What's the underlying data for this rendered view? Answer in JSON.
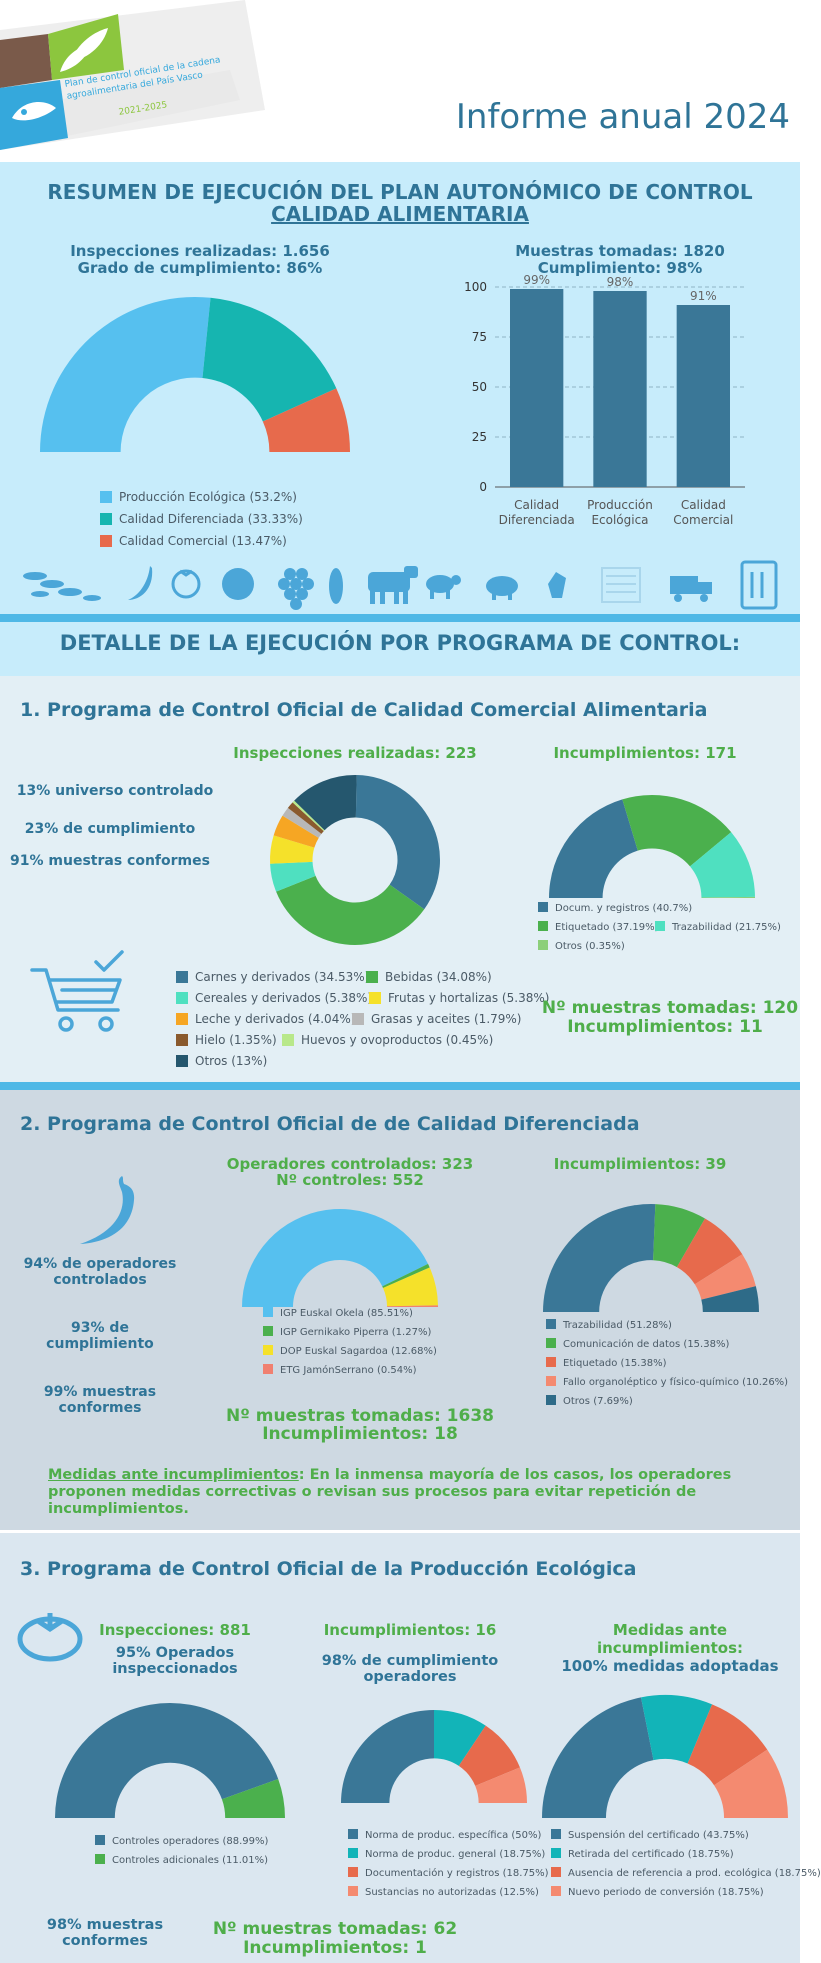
{
  "header": {
    "plan_line1": "Plan de control oficial de la cadena",
    "plan_line2": "agroalimentaria del País Vasco",
    "plan_years": "2021-2025",
    "report_title": "Informe anual 2024"
  },
  "summary": {
    "title_line1": "RESUMEN DE EJECUCIÓN DEL PLAN AUTONÓMICO DE CONTROL",
    "title_line2": "CALIDAD ALIMENTARIA",
    "inspections": "Inspecciones realizadas: 1.656",
    "compliance": "Grado de cumplimiento: 86%",
    "samples": "Muestras tomadas: 1820",
    "samples_compliance": "Cumplimiento: 98%",
    "donut_legend": [
      {
        "label": "Producción Ecológica (53.2%)",
        "color": "#56c0ef"
      },
      {
        "label": "Calidad Diferenciada (33.33%)",
        "color": "#16b5b0"
      },
      {
        "label": "Calidad Comercial (13.47%)",
        "color": "#e76a4c"
      }
    ]
  },
  "detail_title": "DETALLE DE LA EJECUCIÓN POR PROGRAMA DE CONTROL:",
  "icons": [
    "fish-icon",
    "chili-icon",
    "tomato-icon",
    "lettuce-icon",
    "grapes-icon",
    "corn-icon",
    "cow-icon",
    "sheep-icon",
    "pig-icon",
    "rooster-icon",
    "document-icon",
    "truck-icon",
    "vending-machine-icon"
  ],
  "program1": {
    "title": "1. Programa de Control Oficial de Calidad Comercial Alimentaria",
    "stat1": "13% universo controlado",
    "stat2": "23% de cumplimiento",
    "stat3": "91% muestras conformes",
    "inspections": "Inspecciones realizadas: 223",
    "breaches": "Incumplimientos: 171",
    "samples": "Nº muestras tomadas: 120",
    "samples_breaches": "Incumplimientos: 11",
    "sector_legend": [
      {
        "label": "Carnes y derivados (34.53%)",
        "color": "#3a7797"
      },
      {
        "label": "Bebidas (34.08%)",
        "color": "#4bb04d"
      },
      {
        "label": "Cereales y derivados (5.38%)",
        "color": "#4fe0c0"
      },
      {
        "label": "Frutas y hortalizas (5.38%)",
        "color": "#f5e12a"
      },
      {
        "label": "Leche y derivados (4.04%)",
        "color": "#f6a623"
      },
      {
        "label": "Grasas y aceites (1.79%)",
        "color": "#b8b8b8"
      },
      {
        "label": "Hielo (1.35%)",
        "color": "#8a5a2e"
      },
      {
        "label": "Huevos y ovoproductos (0.45%)",
        "color": "#b8e88a"
      },
      {
        "label": "Otros (13%)",
        "color": "#25576e"
      }
    ],
    "breach_legend": [
      {
        "label": "Docum. y registros (40.7%)",
        "color": "#3a7797"
      },
      {
        "label": "Etiquetado (37.19%)",
        "color": "#4bb04d"
      },
      {
        "label": "Trazabilidad (21.75%)",
        "color": "#4fe0c0"
      },
      {
        "label": "Otros (0.35%)",
        "color": "#8ccf7a"
      }
    ]
  },
  "program2": {
    "title": "2. Programa de Control Oficial de de Calidad Diferenciada",
    "stat1": "94% de operadores controlados",
    "stat2": "93% de cumplimiento",
    "stat3": "99% muestras conformes",
    "operators": "Operadores controlados: 323",
    "controls": "Nº controles: 552",
    "breaches": "Incumplimientos: 39",
    "samples": "Nº muestras tomadas: 1638",
    "samples_breaches": "Incumplimientos: 18",
    "measures_label": "Medidas ante incumplimientos",
    "measures_text": ": En la inmensa mayoría de los casos, los operadores proponen medidas correctivas o revisan sus procesos para evitar repetición de incumplimientos.",
    "label_legend": [
      {
        "label": "IGP Euskal Okela (85.51%)",
        "color": "#56c0ef"
      },
      {
        "label": "IGP Gernikako Piperra (1.27%)",
        "color": "#4bb04d"
      },
      {
        "label": "DOP Euskal Sagardoa (12.68%)",
        "color": "#f5e12a"
      },
      {
        "label": "ETG JamónSerrano (0.54%)",
        "color": "#f08070"
      }
    ],
    "breach_legend": [
      {
        "label": "Trazabilidad (51.28%)",
        "color": "#3a7797"
      },
      {
        "label": "Comunicación de datos (15.38%)",
        "color": "#4bb04d"
      },
      {
        "label": "Etiquetado (15.38%)",
        "color": "#e76a4c"
      },
      {
        "label": "Fallo organoléptico y físico-químico (10.26%)",
        "color": "#f48a70"
      },
      {
        "label": "Otros (7.69%)",
        "color": "#2e6b88"
      }
    ]
  },
  "program3": {
    "title": "3. Programa de Control Oficial de la Producción Ecológica",
    "inspections": "Inspecciones: 881",
    "operators_pct": "95% Operados inspeccionados",
    "breaches": "Incumplimientos: 16",
    "compliance": "98% de cumplimiento operadores",
    "measures": "Medidas ante incumplimientos:",
    "measures_pct": "100% medidas adoptadas",
    "samples_conform": "98% muestras conformes",
    "samples": "Nº muestras tomadas: 62",
    "samples_breaches": "Incumplimientos: 1",
    "controls_legend": [
      {
        "label": "Controles operadores (88.99%)",
        "color": "#3a7797"
      },
      {
        "label": "Controles adicionales (11.01%)",
        "color": "#4bb04d"
      }
    ],
    "norm_legend": [
      {
        "label": "Norma de produc. específica (50%)",
        "color": "#3a7797"
      },
      {
        "label": "Norma de produc. general (18.75%)",
        "color": "#12b4b8"
      },
      {
        "label": "Documentación y registros (18.75%)",
        "color": "#e76a4c"
      },
      {
        "label": "Sustancias no autorizadas (12.5%)",
        "color": "#f48a70"
      }
    ],
    "measure_legend": [
      {
        "label": "Suspensión del certificado (43.75%)",
        "color": "#3a7797"
      },
      {
        "label": "Retirada del certificado (18.75%)",
        "color": "#12b4b8"
      },
      {
        "label": "Ausencia de referencia a prod. ecológica (18.75%)",
        "color": "#e76a4c"
      },
      {
        "label": "Nuevo periodo de conversión (18.75%)",
        "color": "#f48a70"
      }
    ]
  },
  "chart_data": [
    {
      "type": "pie",
      "style": "half-donut",
      "categories": [
        "Producción Ecológica",
        "Calidad Diferenciada",
        "Calidad Comercial"
      ],
      "values": [
        53.2,
        33.33,
        13.47
      ],
      "colors": [
        "#56c0ef",
        "#16b5b0",
        "#e76a4c"
      ]
    },
    {
      "type": "bar",
      "categories": [
        "Calidad Diferenciada",
        "Producción Ecológica",
        "Calidad Comercial"
      ],
      "values": [
        99,
        98,
        91
      ],
      "data_labels": [
        "99%",
        "98%",
        "91%"
      ],
      "ylim": [
        0,
        100
      ],
      "yticks": [
        0,
        25,
        50,
        75,
        100
      ],
      "grid": true,
      "color": "#3a7797"
    },
    {
      "type": "pie",
      "style": "donut",
      "categories": [
        "Carnes y derivados",
        "Bebidas",
        "Cereales y derivados",
        "Frutas y hortalizas",
        "Leche y derivados",
        "Grasas y aceites",
        "Hielo",
        "Huevos y ovoproductos",
        "Otros"
      ],
      "values": [
        34.53,
        34.08,
        5.38,
        5.38,
        4.04,
        1.79,
        1.35,
        0.45,
        13
      ],
      "colors": [
        "#3a7797",
        "#4bb04d",
        "#4fe0c0",
        "#f5e12a",
        "#f6a623",
        "#b8b8b8",
        "#8a5a2e",
        "#b8e88a",
        "#25576e"
      ]
    },
    {
      "type": "pie",
      "style": "half-donut",
      "categories": [
        "Docum. y registros",
        "Etiquetado",
        "Trazabilidad",
        "Otros"
      ],
      "values": [
        40.7,
        37.19,
        21.75,
        0.35
      ],
      "colors": [
        "#3a7797",
        "#4bb04d",
        "#4fe0c0",
        "#8ccf7a"
      ]
    },
    {
      "type": "pie",
      "style": "half-donut",
      "categories": [
        "IGP Euskal Okela",
        "IGP Gernikako Piperra",
        "DOP Euskal Sagardoa",
        "ETG JamónSerrano"
      ],
      "values": [
        85.51,
        1.27,
        12.68,
        0.54
      ],
      "colors": [
        "#56c0ef",
        "#4bb04d",
        "#f5e12a",
        "#f08070"
      ]
    },
    {
      "type": "pie",
      "style": "half-donut",
      "categories": [
        "Trazabilidad",
        "Comunicación de datos",
        "Etiquetado",
        "Fallo organoléptico y físico-químico",
        "Otros"
      ],
      "values": [
        51.28,
        15.38,
        15.38,
        10.26,
        7.69
      ],
      "colors": [
        "#3a7797",
        "#4bb04d",
        "#e76a4c",
        "#f48a70",
        "#2e6b88"
      ]
    },
    {
      "type": "pie",
      "style": "half-donut",
      "categories": [
        "Controles operadores",
        "Controles adicionales"
      ],
      "values": [
        88.99,
        11.01
      ],
      "colors": [
        "#3a7797",
        "#4bb04d"
      ]
    },
    {
      "type": "pie",
      "style": "half-donut",
      "categories": [
        "Norma de produc. específica",
        "Norma de produc. general",
        "Documentación y registros",
        "Sustancias no autorizadas"
      ],
      "values": [
        50,
        18.75,
        18.75,
        12.5
      ],
      "colors": [
        "#3a7797",
        "#12b4b8",
        "#e76a4c",
        "#f48a70"
      ]
    },
    {
      "type": "pie",
      "style": "half-donut",
      "categories": [
        "Suspensión del certificado",
        "Retirada del certificado",
        "Ausencia de referencia a prod. ecológica",
        "Nuevo periodo de conversión"
      ],
      "values": [
        43.75,
        18.75,
        18.75,
        18.75
      ],
      "colors": [
        "#3a7797",
        "#12b4b8",
        "#e76a4c",
        "#f48a70"
      ]
    }
  ]
}
